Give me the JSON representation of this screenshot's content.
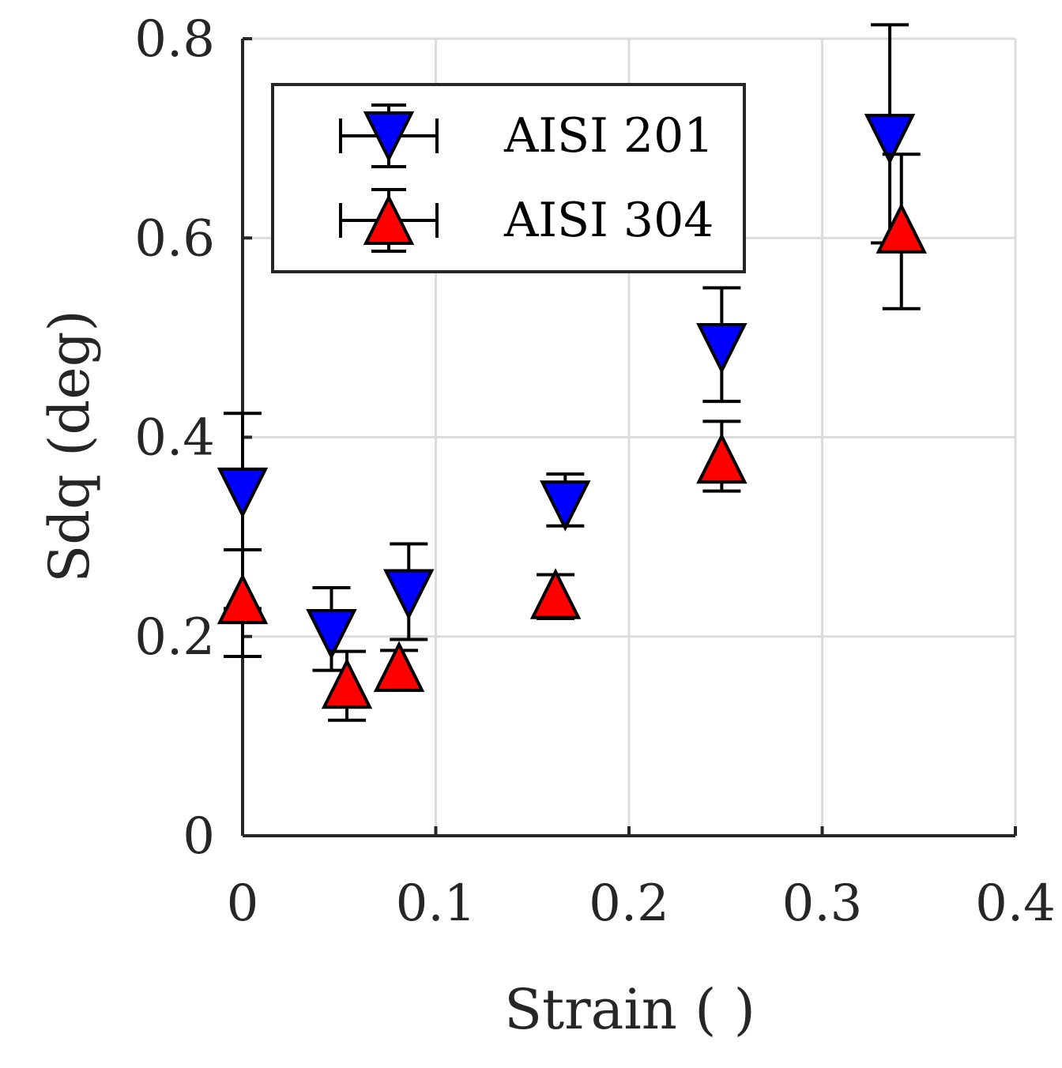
{
  "chart_data": {
    "type": "scatter",
    "title": "",
    "xlabel": "Strain ( )",
    "ylabel": "Sdq (deg)",
    "xlim": [
      0,
      0.4
    ],
    "ylim": [
      0,
      0.8
    ],
    "xticks": [
      0,
      0.1,
      0.2,
      0.3,
      0.4
    ],
    "yticks": [
      0,
      0.2,
      0.4,
      0.6,
      0.8
    ],
    "xtick_labels": [
      "0",
      "0.1",
      "0.2",
      "0.3",
      "0.4"
    ],
    "ytick_labels": [
      "0",
      "0.2",
      "0.4",
      "0.6",
      "0.8"
    ],
    "grid": true,
    "legend_position": "top-left",
    "series": [
      {
        "name": "AISI 201",
        "marker": "triangle-down",
        "color": "#0000ff",
        "points": [
          {
            "x": 0.0,
            "y": 0.345,
            "ylow": 0.228,
            "yhigh": 0.424
          },
          {
            "x": 0.046,
            "y": 0.203,
            "ylow": 0.166,
            "yhigh": 0.249
          },
          {
            "x": 0.086,
            "y": 0.243,
            "ylow": 0.197,
            "yhigh": 0.293
          },
          {
            "x": 0.167,
            "y": 0.332,
            "ylow": 0.311,
            "yhigh": 0.363
          },
          {
            "x": 0.248,
            "y": 0.49,
            "ylow": 0.436,
            "yhigh": 0.55
          },
          {
            "x": 0.335,
            "y": 0.7,
            "ylow": 0.595,
            "yhigh": 0.814
          }
        ]
      },
      {
        "name": "AISI 304",
        "marker": "triangle-up",
        "color": "#ff0000",
        "points": [
          {
            "x": 0.0,
            "y": 0.237,
            "ylow": 0.18,
            "yhigh": 0.287
          },
          {
            "x": 0.054,
            "y": 0.152,
            "ylow": 0.116,
            "yhigh": 0.185
          },
          {
            "x": 0.081,
            "y": 0.169,
            "ylow": 0.149,
            "yhigh": 0.186
          },
          {
            "x": 0.162,
            "y": 0.242,
            "ylow": 0.218,
            "yhigh": 0.262
          },
          {
            "x": 0.248,
            "y": 0.378,
            "ylow": 0.346,
            "yhigh": 0.416
          },
          {
            "x": 0.341,
            "y": 0.609,
            "ylow": 0.529,
            "yhigh": 0.684
          }
        ]
      }
    ]
  }
}
